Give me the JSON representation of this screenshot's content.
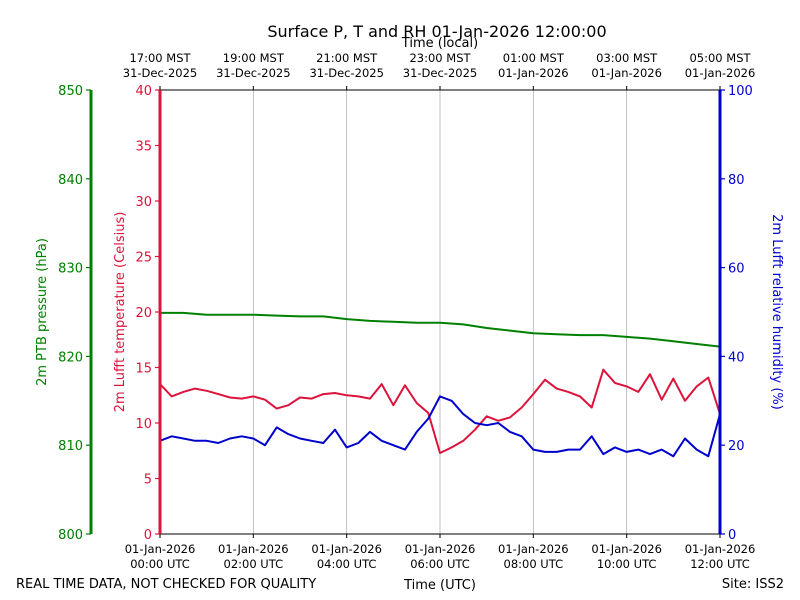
{
  "chart_data": {
    "type": "line",
    "title": "Surface P, T and RH 01-Jan-2026 12:00:00",
    "top_axis_label": "Time (local)",
    "xlabel": "Time (UTC)",
    "footer_left": "REAL TIME DATA, NOT CHECKED FOR QUALITY",
    "footer_right": "Site: ISS2",
    "x_range_hours": [
      0,
      12
    ],
    "grid_vertical": true,
    "bottom_ticks": [
      {
        "hour": 0,
        "line1": "01-Jan-2026",
        "line2": "00:00 UTC"
      },
      {
        "hour": 2,
        "line1": "01-Jan-2026",
        "line2": "02:00 UTC"
      },
      {
        "hour": 4,
        "line1": "01-Jan-2026",
        "line2": "04:00 UTC"
      },
      {
        "hour": 6,
        "line1": "01-Jan-2026",
        "line2": "06:00 UTC"
      },
      {
        "hour": 8,
        "line1": "01-Jan-2026",
        "line2": "08:00 UTC"
      },
      {
        "hour": 10,
        "line1": "01-Jan-2026",
        "line2": "10:00 UTC"
      },
      {
        "hour": 12,
        "line1": "01-Jan-2026",
        "line2": "12:00 UTC"
      }
    ],
    "top_ticks": [
      {
        "hour": 0,
        "line1": "17:00 MST",
        "line2": "31-Dec-2025"
      },
      {
        "hour": 2,
        "line1": "19:00 MST",
        "line2": "31-Dec-2025"
      },
      {
        "hour": 4,
        "line1": "21:00 MST",
        "line2": "31-Dec-2025"
      },
      {
        "hour": 6,
        "line1": "23:00 MST",
        "line2": "31-Dec-2025"
      },
      {
        "hour": 8,
        "line1": "01:00 MST",
        "line2": "01-Jan-2026"
      },
      {
        "hour": 10,
        "line1": "03:00 MST",
        "line2": "01-Jan-2026"
      },
      {
        "hour": 12,
        "line1": "05:00 MST",
        "line2": "01-Jan-2026"
      }
    ],
    "axes": {
      "pressure": {
        "label": "2m PTB pressure (hPa)",
        "range": [
          800,
          850
        ],
        "ticks": [
          800,
          810,
          820,
          830,
          840,
          850
        ],
        "color": "#008000"
      },
      "temperature": {
        "label": "2m Lufft temperature (Celsius)",
        "range": [
          0,
          40
        ],
        "ticks": [
          0,
          5,
          10,
          15,
          20,
          25,
          30,
          35,
          40
        ],
        "color": "#dc143c"
      },
      "humidity": {
        "label": "2m Lufft relative humidity (%)",
        "range": [
          0,
          100
        ],
        "ticks": [
          0,
          20,
          40,
          60,
          80,
          100
        ],
        "color": "#0000cd"
      }
    },
    "series": [
      {
        "axis": "pressure",
        "color": "#008000",
        "x": [
          0,
          0.5,
          1,
          1.5,
          2,
          2.5,
          3,
          3.5,
          4,
          4.5,
          5,
          5.5,
          6,
          6.5,
          7,
          7.5,
          8,
          8.5,
          9,
          9.5,
          10,
          10.5,
          11,
          11.5,
          12
        ],
        "y": [
          824.9,
          824.9,
          824.7,
          824.7,
          824.7,
          824.6,
          824.5,
          824.5,
          824.2,
          824.0,
          823.9,
          823.8,
          823.8,
          823.6,
          823.2,
          822.9,
          822.6,
          822.5,
          822.4,
          822.4,
          822.2,
          822.0,
          821.7,
          821.4,
          821.1
        ]
      },
      {
        "axis": "temperature",
        "color": "#dc143c",
        "x": [
          0,
          0.25,
          0.5,
          0.75,
          1,
          1.25,
          1.5,
          1.75,
          2,
          2.25,
          2.5,
          2.75,
          3,
          3.25,
          3.5,
          3.75,
          4,
          4.25,
          4.5,
          4.75,
          5,
          5.25,
          5.5,
          5.75,
          6,
          6.25,
          6.5,
          6.75,
          7,
          7.25,
          7.5,
          7.75,
          8,
          8.25,
          8.5,
          8.75,
          9,
          9.25,
          9.5,
          9.75,
          10,
          10.25,
          10.5,
          10.75,
          11,
          11.25,
          11.5,
          11.75,
          12
        ],
        "y": [
          13.5,
          12.4,
          12.8,
          13.1,
          12.9,
          12.6,
          12.3,
          12.2,
          12.4,
          12.1,
          11.3,
          11.6,
          12.3,
          12.2,
          12.6,
          12.7,
          12.5,
          12.4,
          12.2,
          13.5,
          11.6,
          13.4,
          11.8,
          10.9,
          7.3,
          7.8,
          8.4,
          9.4,
          10.6,
          10.2,
          10.5,
          11.4,
          12.6,
          13.9,
          13.1,
          12.8,
          12.4,
          11.4,
          14.8,
          13.6,
          13.3,
          12.8,
          14.4,
          12.1,
          14.0,
          12.0,
          13.3,
          14.1,
          10.8
        ]
      },
      {
        "axis": "humidity",
        "color": "#0000cd",
        "x": [
          0,
          0.25,
          0.5,
          0.75,
          1,
          1.25,
          1.5,
          1.75,
          2,
          2.25,
          2.5,
          2.75,
          3,
          3.25,
          3.5,
          3.75,
          4,
          4.25,
          4.5,
          4.75,
          5,
          5.25,
          5.5,
          5.75,
          6,
          6.25,
          6.5,
          6.75,
          7,
          7.25,
          7.5,
          7.75,
          8,
          8.25,
          8.5,
          8.75,
          9,
          9.25,
          9.5,
          9.75,
          10,
          10.25,
          10.5,
          10.75,
          11,
          11.25,
          11.5,
          11.75,
          12
        ],
        "y": [
          21,
          22,
          21.5,
          21,
          21,
          20.5,
          21.5,
          22,
          21.5,
          20,
          24,
          22.5,
          21.5,
          21,
          20.5,
          23.5,
          19.5,
          20.5,
          23,
          21,
          20,
          19,
          23,
          26,
          31,
          30,
          27,
          25,
          24.5,
          25,
          23,
          22,
          19,
          18.5,
          18.5,
          19,
          19,
          22,
          18,
          19.5,
          18.5,
          19,
          18,
          19,
          17.5,
          21.5,
          19,
          17.5,
          27
        ]
      }
    ]
  }
}
